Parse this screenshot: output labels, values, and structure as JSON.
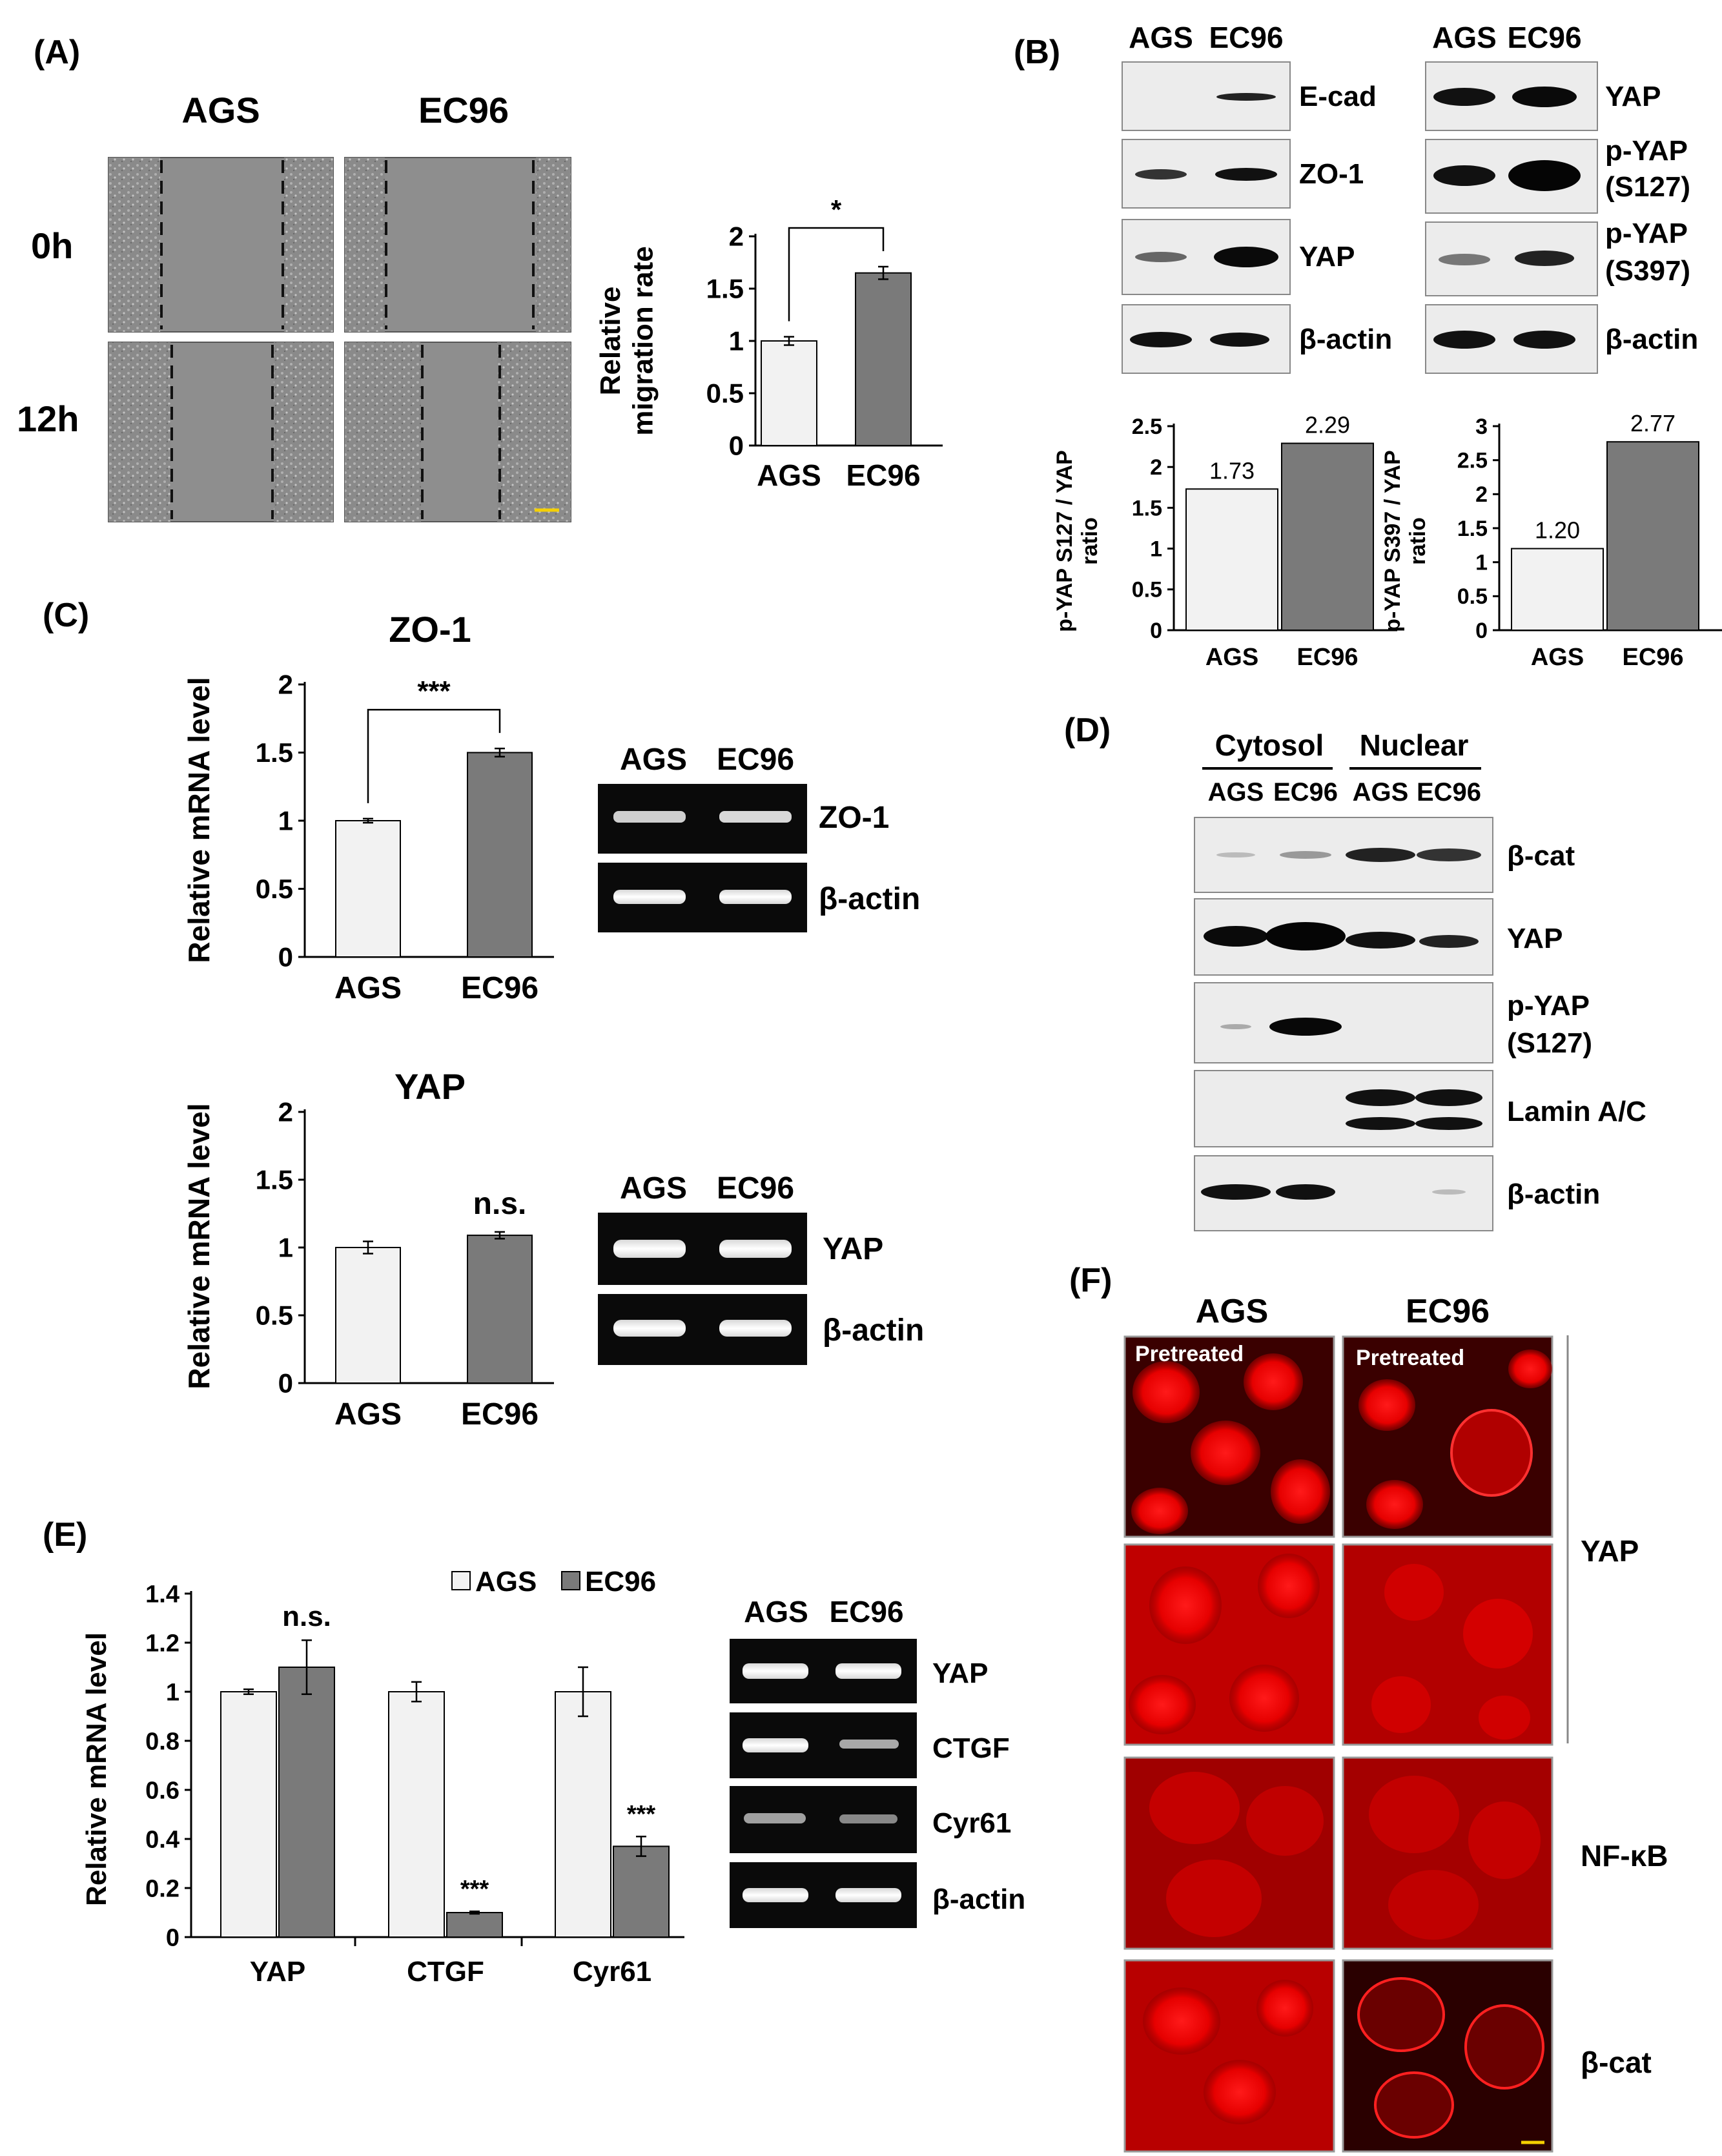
{
  "panels": {
    "A": {
      "label": "(A)",
      "cols": [
        "AGS",
        "EC96"
      ],
      "rows": [
        "0h",
        "12h"
      ]
    },
    "B": {
      "label": "(B)",
      "left_blot": {
        "lanes": [
          "AGS",
          "EC96"
        ],
        "bands": [
          "E-cad",
          "ZO-1",
          "YAP",
          "β-actin"
        ]
      },
      "right_blot": {
        "lanes": [
          "AGS",
          "EC96"
        ],
        "bands": [
          "YAP",
          "p-YAP",
          "(S127)",
          "p-YAP",
          "(S397)",
          "β-actin"
        ]
      }
    },
    "C": {
      "label": "(C)",
      "gel1": {
        "lanes": [
          "AGS",
          "EC96"
        ],
        "bands": [
          "ZO-1",
          "β-actin"
        ]
      },
      "gel2": {
        "lanes": [
          "AGS",
          "EC96"
        ],
        "bands": [
          "YAP",
          "β-actin"
        ]
      }
    },
    "D": {
      "label": "(D)",
      "groups": [
        "Cytosol",
        "Nuclear"
      ],
      "lanes": [
        "AGS",
        "EC96",
        "AGS",
        "EC96"
      ],
      "bands": [
        "β-cat",
        "YAP",
        "p-YAP",
        "(S127)",
        "Lamin A/C",
        "β-actin"
      ]
    },
    "E": {
      "label": "(E)",
      "gel": {
        "lanes": [
          "AGS",
          "EC96"
        ],
        "bands": [
          "YAP",
          "CTGF",
          "Cyr61",
          "β-actin"
        ]
      }
    },
    "F": {
      "label": "(F)",
      "cols": [
        "AGS",
        "EC96"
      ],
      "pretreated": "Pretreated",
      "rows": [
        "YAP",
        "NF-κB",
        "β-cat"
      ]
    }
  },
  "colors": {
    "ags_bar": "#f2f2f2",
    "ec96_bar": "#7a7a7a",
    "fluor": "#e00000"
  },
  "chart_data": [
    {
      "id": "A-migration",
      "type": "bar",
      "categories": [
        "AGS",
        "EC96"
      ],
      "values": [
        1.0,
        1.65
      ],
      "errors": [
        0.04,
        0.06
      ],
      "ylabel": "Relative migration rate",
      "ylabel_lines": [
        "Relative",
        "migration rate"
      ],
      "ylim": [
        0,
        2
      ],
      "yticks": [
        "0",
        "0.5",
        "1",
        "1.5",
        "2"
      ],
      "annotation": "*",
      "grid": false
    },
    {
      "id": "B-s127",
      "type": "bar",
      "categories": [
        "AGS",
        "EC96"
      ],
      "values": [
        1.73,
        2.29
      ],
      "data_labels": [
        "1.73",
        "2.29"
      ],
      "ylabel": "p-YAP S127 / YAP ratio",
      "ylabel_lines": [
        "p-YAP S127 / YAP",
        "ratio"
      ],
      "ylim": [
        0,
        2.5
      ],
      "yticks": [
        "0",
        "0.5",
        "1",
        "1.5",
        "2",
        "2.5"
      ],
      "grid": false
    },
    {
      "id": "B-s397",
      "type": "bar",
      "categories": [
        "AGS",
        "EC96"
      ],
      "values": [
        1.2,
        2.77
      ],
      "data_labels": [
        "1.20",
        "2.77"
      ],
      "ylabel": "p-YAP S397 / YAP ratio",
      "ylabel_lines": [
        "p-YAP S397 / YAP",
        "ratio"
      ],
      "ylim": [
        0,
        3
      ],
      "yticks": [
        "0",
        "0.5",
        "1",
        "1.5",
        "2",
        "2.5",
        "3"
      ],
      "grid": false
    },
    {
      "id": "C-zo1",
      "type": "bar",
      "title": "ZO-1",
      "categories": [
        "AGS",
        "EC96"
      ],
      "values": [
        1.0,
        1.5
      ],
      "errors": [
        0.015,
        0.03
      ],
      "ylabel": "Relative mRNA level",
      "ylim": [
        0,
        2
      ],
      "yticks": [
        "0",
        "0.5",
        "1",
        "1.5",
        "2"
      ],
      "annotation": "***",
      "grid": false
    },
    {
      "id": "C-yap",
      "type": "bar",
      "title": "YAP",
      "categories": [
        "AGS",
        "EC96"
      ],
      "values": [
        1.0,
        1.09
      ],
      "errors": [
        0.045,
        0.025
      ],
      "ylabel": "Relative mRNA level",
      "ylim": [
        0,
        2
      ],
      "yticks": [
        "0",
        "0.5",
        "1",
        "1.5",
        "2"
      ],
      "annotation": "n.s.",
      "grid": false
    },
    {
      "id": "E-targets",
      "type": "bar",
      "categories": [
        "YAP",
        "CTGF",
        "Cyr61"
      ],
      "series": [
        {
          "name": "AGS",
          "values": [
            1.0,
            1.0,
            1.0
          ],
          "errors": [
            0.01,
            0.04,
            0.1
          ]
        },
        {
          "name": "EC96",
          "values": [
            1.1,
            0.1,
            0.37
          ],
          "errors": [
            0.11,
            0.005,
            0.04
          ]
        }
      ],
      "annotations": [
        "n.s.",
        "***",
        "***"
      ],
      "ylabel": "Relative mRNA level",
      "ylim": [
        0,
        1.4
      ],
      "yticks": [
        "0",
        "0.2",
        "0.4",
        "0.6",
        "0.8",
        "1",
        "1.2",
        "1.4"
      ],
      "legend": "top",
      "grid": false
    }
  ]
}
